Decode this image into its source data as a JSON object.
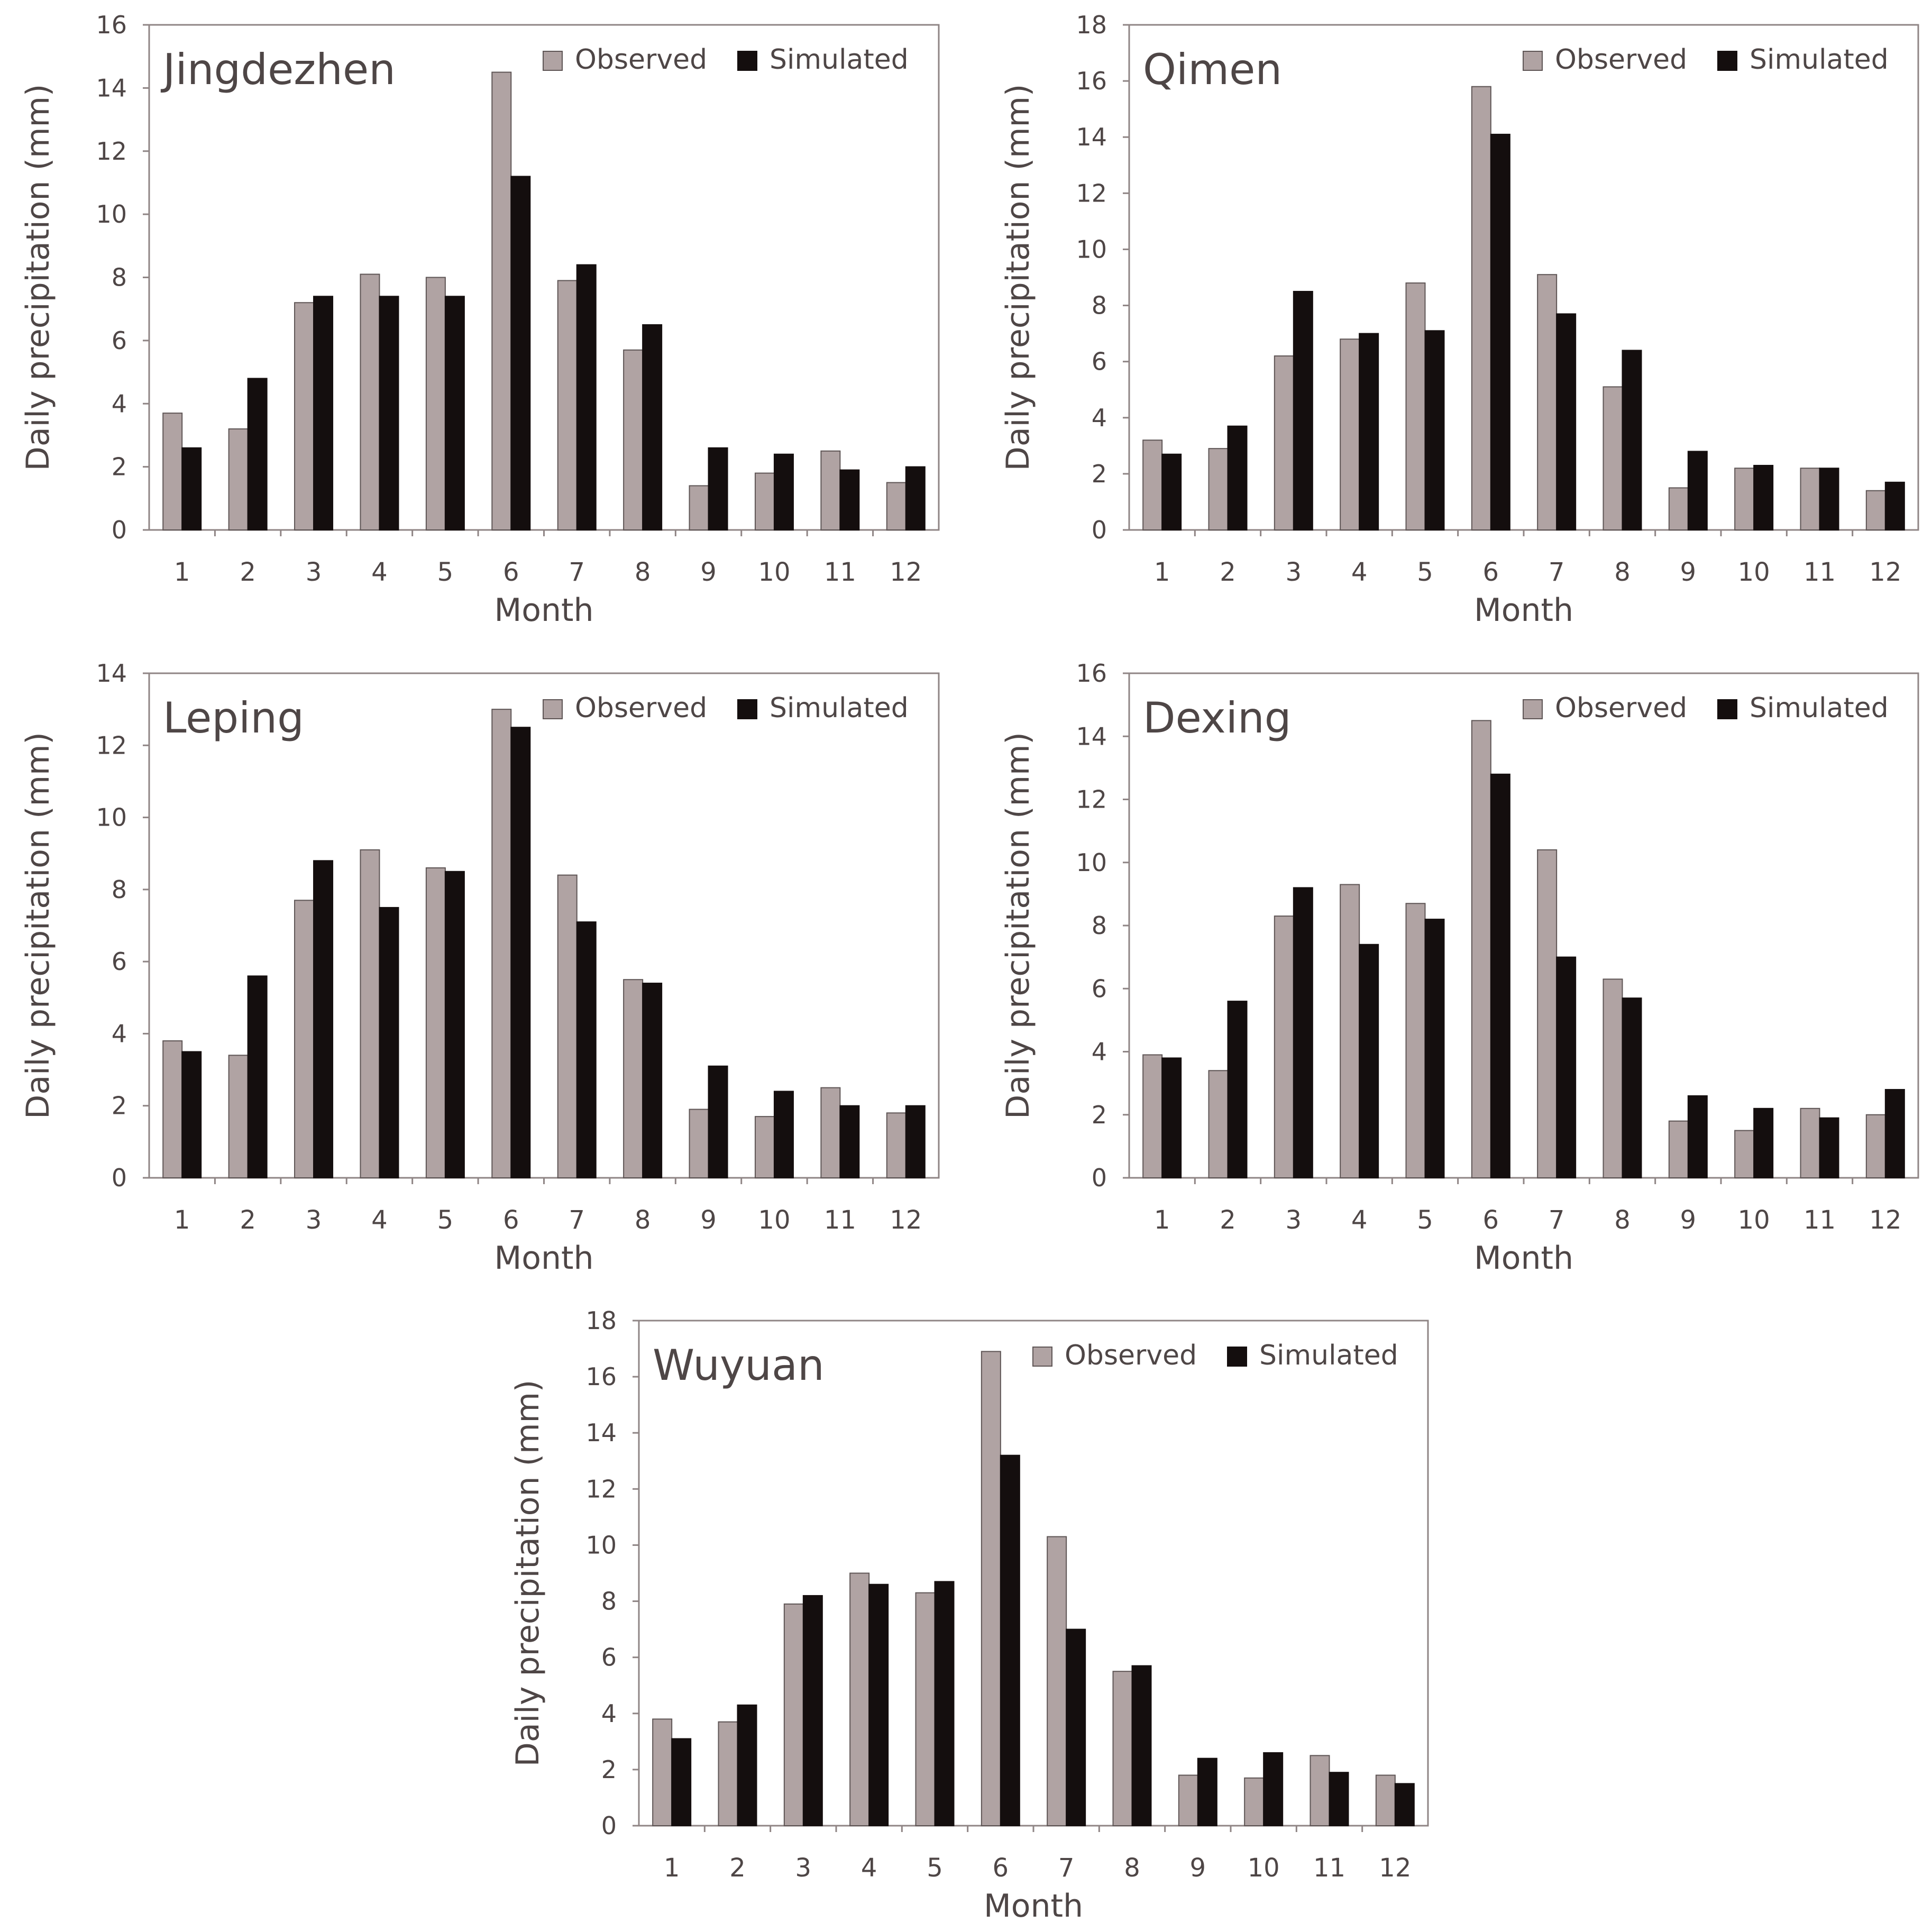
{
  "colors": {
    "observed": "#b0a3a3",
    "simulated": "#140e0e",
    "axis": "#8f8585",
    "bar_outline": "#5e5555",
    "text": "#4e4646"
  },
  "chart_data": [
    {
      "type": "bar",
      "title": "Jingdezhen",
      "xlabel": "Month",
      "ylabel": "Daily precipitation (mm)",
      "categories": [
        "1",
        "2",
        "3",
        "4",
        "5",
        "6",
        "7",
        "8",
        "9",
        "10",
        "11",
        "12"
      ],
      "ylim": [
        0,
        16
      ],
      "yticks": [
        "0",
        "2",
        "4",
        "6",
        "8",
        "10",
        "12",
        "14",
        "16"
      ],
      "legend": [
        "Observed",
        "Simulated"
      ],
      "series": [
        {
          "name": "Observed",
          "values": [
            3.7,
            3.2,
            7.2,
            8.1,
            8.0,
            14.5,
            7.9,
            5.7,
            1.4,
            1.8,
            2.5,
            1.5
          ]
        },
        {
          "name": "Simulated",
          "values": [
            2.6,
            4.8,
            7.4,
            7.4,
            7.4,
            11.2,
            8.4,
            6.5,
            2.6,
            2.4,
            1.9,
            2.0
          ]
        }
      ]
    },
    {
      "type": "bar",
      "title": "Qimen",
      "xlabel": "Month",
      "ylabel": "Daily precipitation (mm)",
      "categories": [
        "1",
        "2",
        "3",
        "4",
        "5",
        "6",
        "7",
        "8",
        "9",
        "10",
        "11",
        "12"
      ],
      "ylim": [
        0,
        18
      ],
      "yticks": [
        "0",
        "2",
        "4",
        "6",
        "8",
        "10",
        "12",
        "14",
        "16",
        "18"
      ],
      "legend": [
        "Observed",
        "Simulated"
      ],
      "series": [
        {
          "name": "Observed",
          "values": [
            3.2,
            2.9,
            6.2,
            6.8,
            8.8,
            15.8,
            9.1,
            5.1,
            1.5,
            2.2,
            2.2,
            1.4
          ]
        },
        {
          "name": "Simulated",
          "values": [
            2.7,
            3.7,
            8.5,
            7.0,
            7.1,
            14.1,
            7.7,
            6.4,
            2.8,
            2.3,
            2.2,
            1.7
          ]
        }
      ]
    },
    {
      "type": "bar",
      "title": "Leping",
      "xlabel": "Month",
      "ylabel": "Daily precipitation (mm)",
      "categories": [
        "1",
        "2",
        "3",
        "4",
        "5",
        "6",
        "7",
        "8",
        "9",
        "10",
        "11",
        "12"
      ],
      "ylim": [
        0,
        14
      ],
      "yticks": [
        "0",
        "2",
        "4",
        "6",
        "8",
        "10",
        "12",
        "14"
      ],
      "legend": [
        "Observed",
        "Simulated"
      ],
      "series": [
        {
          "name": "Observed",
          "values": [
            3.8,
            3.4,
            7.7,
            9.1,
            8.6,
            13.0,
            8.4,
            5.5,
            1.9,
            1.7,
            2.5,
            1.8
          ]
        },
        {
          "name": "Simulated",
          "values": [
            3.5,
            5.6,
            8.8,
            7.5,
            8.5,
            12.5,
            7.1,
            5.4,
            3.1,
            2.4,
            2.0,
            2.0
          ]
        }
      ]
    },
    {
      "type": "bar",
      "title": "Dexing",
      "xlabel": "Month",
      "ylabel": "Daily precipitation (mm)",
      "categories": [
        "1",
        "2",
        "3",
        "4",
        "5",
        "6",
        "7",
        "8",
        "9",
        "10",
        "11",
        "12"
      ],
      "ylim": [
        0,
        16
      ],
      "yticks": [
        "0",
        "2",
        "4",
        "6",
        "8",
        "10",
        "12",
        "14",
        "16"
      ],
      "legend": [
        "Observed",
        "Simulated"
      ],
      "series": [
        {
          "name": "Observed",
          "values": [
            3.9,
            3.4,
            8.3,
            9.3,
            8.7,
            14.5,
            10.4,
            6.3,
            1.8,
            1.5,
            2.2,
            2.0
          ]
        },
        {
          "name": "Simulated",
          "values": [
            3.8,
            5.6,
            9.2,
            7.4,
            8.2,
            12.8,
            7.0,
            5.7,
            2.6,
            2.2,
            1.9,
            2.8
          ]
        }
      ]
    },
    {
      "type": "bar",
      "title": "Wuyuan",
      "xlabel": "Month",
      "ylabel": "Daily precipitation (mm)",
      "categories": [
        "1",
        "2",
        "3",
        "4",
        "5",
        "6",
        "7",
        "8",
        "9",
        "10",
        "11",
        "12"
      ],
      "ylim": [
        0,
        18
      ],
      "yticks": [
        "0",
        "2",
        "4",
        "6",
        "8",
        "10",
        "12",
        "14",
        "16",
        "18"
      ],
      "legend": [
        "Observed",
        "Simulated"
      ],
      "series": [
        {
          "name": "Observed",
          "values": [
            3.8,
            3.7,
            7.9,
            9.0,
            8.3,
            16.9,
            10.3,
            5.5,
            1.8,
            1.7,
            2.5,
            1.8
          ]
        },
        {
          "name": "Simulated",
          "values": [
            3.1,
            4.3,
            8.2,
            8.6,
            8.7,
            13.2,
            7.0,
            5.7,
            2.4,
            2.6,
            1.9,
            1.5
          ]
        }
      ]
    }
  ]
}
